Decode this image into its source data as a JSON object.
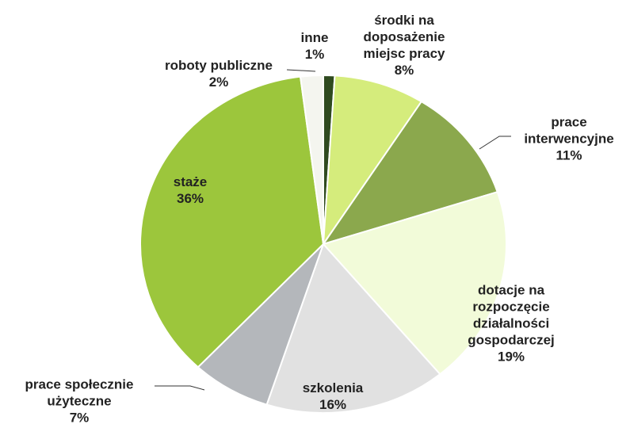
{
  "chart_data": {
    "type": "pie",
    "categories": [
      "inne",
      "środki na doposażenie miejsc pracy",
      "prace interwencyjne",
      "dotacje na rozpoczęcie działalności gospodarczej",
      "szkolenia",
      "prace społecznie użyteczne",
      "staże",
      "roboty publiczne"
    ],
    "values": [
      1,
      8,
      11,
      19,
      16,
      7,
      36,
      2
    ],
    "value_labels": [
      "1%",
      "8%",
      "11%",
      "19%",
      "16%",
      "7%",
      "36%",
      "2%"
    ],
    "colors": [
      "#2f4a1f",
      "#d5ec7c",
      "#8ba84d",
      "#f2fbd9",
      "#e1e1e1",
      "#b4b7bb",
      "#9cc63c",
      "#f4f5ef"
    ]
  }
}
